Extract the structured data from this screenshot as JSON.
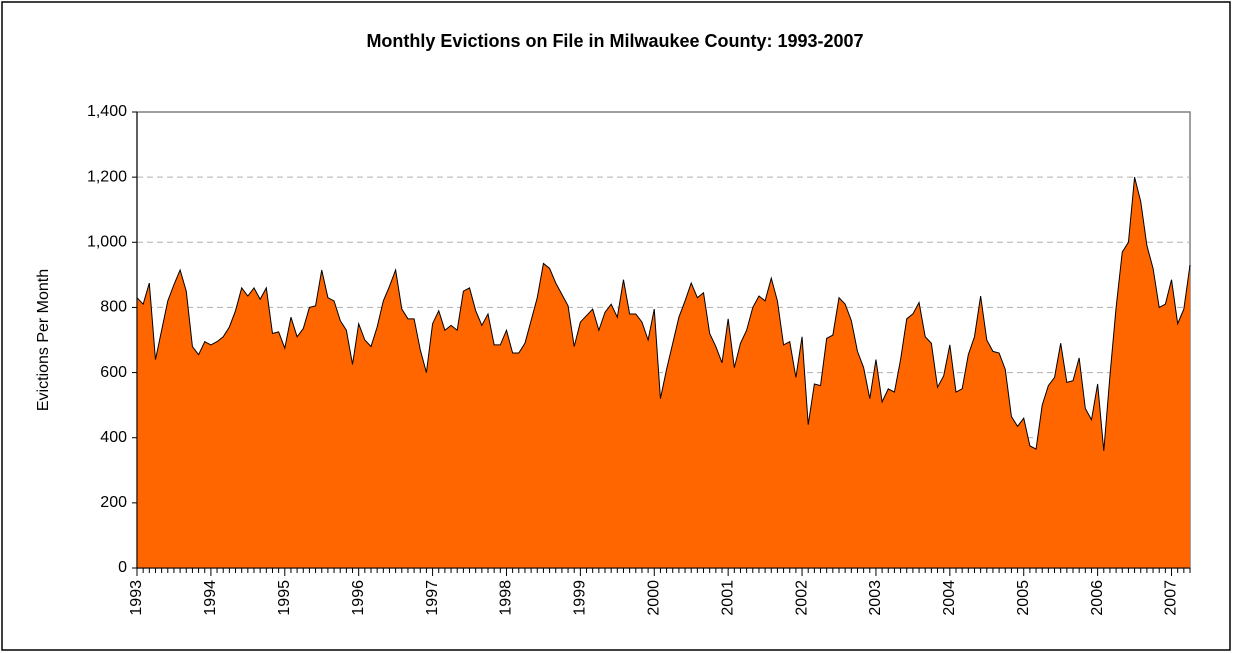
{
  "chart_data": {
    "type": "area",
    "title": "Monthly Evictions on File in Milwaukee County: 1993-2007",
    "y_label": "Evictions Per Month",
    "categories": [
      "1993",
      null,
      null,
      null,
      null,
      null,
      null,
      null,
      null,
      null,
      null,
      null,
      "1994",
      null,
      null,
      null,
      null,
      null,
      null,
      null,
      null,
      null,
      null,
      null,
      "1995",
      null,
      null,
      null,
      null,
      null,
      null,
      null,
      null,
      null,
      null,
      null,
      "1996",
      null,
      null,
      null,
      null,
      null,
      null,
      null,
      null,
      null,
      null,
      null,
      "1997",
      null,
      null,
      null,
      null,
      null,
      null,
      null,
      null,
      null,
      null,
      null,
      "1998",
      null,
      null,
      null,
      null,
      null,
      null,
      null,
      null,
      null,
      null,
      null,
      "1999",
      null,
      null,
      null,
      null,
      null,
      null,
      null,
      null,
      null,
      null,
      null,
      "2000",
      null,
      null,
      null,
      null,
      null,
      null,
      null,
      null,
      null,
      null,
      null,
      "2001",
      null,
      null,
      null,
      null,
      null,
      null,
      null,
      null,
      null,
      null,
      null,
      "2002",
      null,
      null,
      null,
      null,
      null,
      null,
      null,
      null,
      null,
      null,
      null,
      "2003",
      null,
      null,
      null,
      null,
      null,
      null,
      null,
      null,
      null,
      null,
      null,
      "2004",
      null,
      null,
      null,
      null,
      null,
      null,
      null,
      null,
      null,
      null,
      null,
      "2005",
      null,
      null,
      null,
      null,
      null,
      null,
      null,
      null,
      null,
      null,
      null,
      "2006",
      null,
      null,
      null,
      null,
      null,
      null,
      null,
      null,
      null,
      null,
      null,
      "2007",
      null,
      null,
      null
    ],
    "values": [
      830,
      810,
      875,
      640,
      730,
      820,
      870,
      915,
      850,
      680,
      655,
      695,
      685,
      695,
      710,
      740,
      790,
      860,
      835,
      860,
      825,
      860,
      720,
      725,
      675,
      770,
      710,
      735,
      800,
      805,
      915,
      830,
      820,
      760,
      730,
      625,
      750,
      700,
      680,
      740,
      820,
      865,
      915,
      795,
      765,
      765,
      670,
      600,
      750,
      790,
      730,
      745,
      730,
      850,
      860,
      790,
      745,
      780,
      685,
      685,
      730,
      660,
      660,
      690,
      760,
      830,
      935,
      920,
      875,
      840,
      805,
      680,
      755,
      775,
      795,
      730,
      785,
      810,
      770,
      885,
      780,
      780,
      755,
      700,
      795,
      520,
      610,
      690,
      770,
      820,
      875,
      830,
      845,
      720,
      680,
      630,
      765,
      615,
      690,
      730,
      800,
      835,
      820,
      890,
      820,
      685,
      695,
      585,
      710,
      440,
      565,
      560,
      705,
      715,
      830,
      810,
      760,
      665,
      615,
      520,
      640,
      510,
      550,
      540,
      640,
      765,
      780,
      815,
      710,
      690,
      555,
      590,
      685,
      540,
      550,
      655,
      710,
      835,
      700,
      665,
      660,
      610,
      465,
      435,
      460,
      375,
      365,
      500,
      560,
      585,
      690,
      570,
      575,
      645,
      490,
      455,
      565,
      360,
      590,
      800,
      970,
      1000,
      1200,
      1125,
      990,
      920,
      800,
      810,
      885,
      750,
      795,
      930
    ],
    "color": "#ff6600",
    "line_color": "#000000",
    "ylim": [
      0,
      1400
    ],
    "yticks": [
      0,
      200,
      400,
      600,
      800,
      {
        "value": 1000,
        "label": "1,000"
      },
      {
        "value": 1200,
        "label": "1,200"
      },
      {
        "value": 1400,
        "label": "1,400"
      }
    ],
    "grid": true
  }
}
